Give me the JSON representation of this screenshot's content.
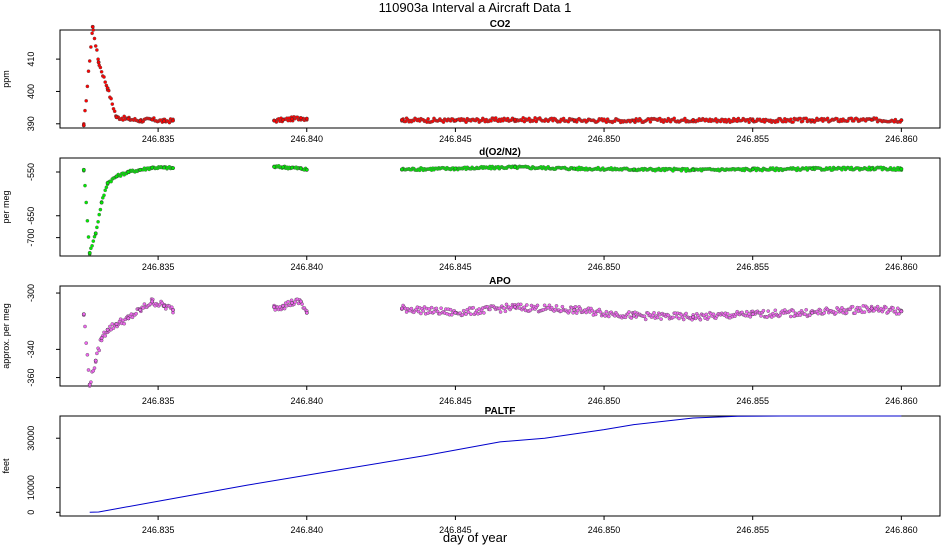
{
  "figure": {
    "title": "110903a   Interval a Aircraft Data 1",
    "xlabel": "day of year"
  },
  "chart_data": [
    {
      "type": "scatter",
      "title": "CO2",
      "ylabel": "ppm",
      "color": "#ff0000",
      "xlim": [
        246.8317,
        246.8613
      ],
      "ylim": [
        388.7,
        419.0
      ],
      "xticks": [
        "246.835",
        "246.840",
        "246.845",
        "246.850",
        "246.855",
        "246.860"
      ],
      "xtick_values": [
        246.835,
        246.84,
        246.845,
        246.85,
        246.855,
        246.86
      ],
      "yticks": [
        "390",
        "400",
        "410"
      ],
      "ytick_values": [
        390,
        400,
        410
      ],
      "segments": [
        {
          "x": [
            246.8325,
            246.8328,
            246.833,
            246.8333,
            246.8336,
            246.834,
            246.8344,
            246.8348,
            246.8352,
            246.8355
          ],
          "y": [
            389.5,
            420.0,
            409.0,
            401.0,
            392.0,
            391.5,
            391.0,
            391.3,
            390.8,
            391.0
          ]
        },
        {
          "x": [
            246.8389,
            246.8392,
            246.8395,
            246.8398,
            246.84
          ],
          "y": [
            391.0,
            391.2,
            391.5,
            391.8,
            391.6
          ]
        },
        {
          "x": [
            246.8432,
            246.845,
            246.847,
            246.849,
            246.851,
            246.853,
            246.855,
            246.857,
            246.859,
            246.86
          ],
          "y": [
            391.2,
            391.0,
            391.3,
            391.1,
            391.0,
            391.2,
            391.0,
            391.1,
            391.2,
            391.1
          ]
        }
      ]
    },
    {
      "type": "scatter",
      "title": "d(O2/N2)",
      "ylabel": "per meg",
      "color": "#00ee00",
      "xlim": [
        246.8317,
        246.8613
      ],
      "ylim": [
        -742,
        -518
      ],
      "xticks": [
        "246.835",
        "246.840",
        "246.845",
        "246.850",
        "246.855",
        "246.860"
      ],
      "xtick_values": [
        246.835,
        246.84,
        246.845,
        246.85,
        246.855,
        246.86
      ],
      "yticks": [
        "-700",
        "-650",
        "-550"
      ],
      "ytick_values": [
        -700,
        -650,
        -550
      ],
      "segments": [
        {
          "x": [
            246.8325,
            246.8327,
            246.8329,
            246.8331,
            246.8333,
            246.8336,
            246.834,
            246.8344,
            246.8348,
            246.8352,
            246.8355
          ],
          "y": [
            -545,
            -735,
            -690,
            -620,
            -575,
            -560,
            -550,
            -545,
            -540,
            -540,
            -541
          ]
        },
        {
          "x": [
            246.8389,
            246.8392,
            246.8395,
            246.8398,
            246.84
          ],
          "y": [
            -538,
            -539,
            -540,
            -542,
            -545
          ]
        },
        {
          "x": [
            246.8432,
            246.845,
            246.847,
            246.849,
            246.851,
            246.853,
            246.855,
            246.857,
            246.859,
            246.86
          ],
          "y": [
            -544,
            -542,
            -539,
            -542,
            -544,
            -545,
            -544,
            -543,
            -542,
            -543
          ]
        }
      ]
    },
    {
      "type": "scatter",
      "title": "APO",
      "ylabel": "approx. per meg",
      "color": "#ee66ee",
      "xlim": [
        246.8317,
        246.8613
      ],
      "ylim": [
        -366,
        -295
      ],
      "xticks": [
        "246.835",
        "246.840",
        "246.845",
        "246.850",
        "246.855",
        "246.860"
      ],
      "xtick_values": [
        246.835,
        246.84,
        246.845,
        246.85,
        246.855,
        246.86
      ],
      "yticks": [
        "-360",
        "-340",
        "-300"
      ],
      "ytick_values": [
        -360,
        -340,
        -300
      ],
      "segments": [
        {
          "x": [
            246.8325,
            246.8327,
            246.8329,
            246.8331,
            246.8333,
            246.8336,
            246.834,
            246.8344,
            246.8348,
            246.8352,
            246.8355
          ],
          "y": [
            -315,
            -365,
            -348,
            -332,
            -326,
            -322,
            -318,
            -312,
            -306,
            -309,
            -312
          ]
        },
        {
          "x": [
            246.8389,
            246.8392,
            246.8395,
            246.8398,
            246.84
          ],
          "y": [
            -310,
            -309,
            -307,
            -306,
            -314
          ]
        },
        {
          "x": [
            246.8432,
            246.845,
            246.847,
            246.849,
            246.851,
            246.853,
            246.855,
            246.857,
            246.859,
            246.86
          ],
          "y": [
            -311,
            -314,
            -310,
            -312,
            -316,
            -317,
            -315,
            -314,
            -311,
            -313
          ]
        }
      ]
    },
    {
      "type": "line",
      "title": "PALTF",
      "ylabel": "feet",
      "color": "#0000cc",
      "xlim": [
        246.8317,
        246.8613
      ],
      "ylim": [
        -1500,
        39000
      ],
      "xticks": [
        "246.835",
        "246.840",
        "246.845",
        "246.850",
        "246.855",
        "246.860"
      ],
      "xtick_values": [
        246.835,
        246.84,
        246.845,
        246.85,
        246.855,
        246.86
      ],
      "yticks": [
        "0",
        "10000",
        "30000"
      ],
      "ytick_values": [
        0,
        10000,
        30000
      ],
      "x": [
        246.8327,
        246.833,
        246.835,
        246.838,
        246.841,
        246.844,
        246.8465,
        246.848,
        246.85,
        246.851,
        246.853,
        246.8545,
        246.856,
        246.86
      ],
      "y": [
        0,
        100,
        4500,
        11000,
        17000,
        23000,
        28500,
        30000,
        33500,
        35500,
        38200,
        38900,
        39000,
        39000
      ]
    }
  ]
}
